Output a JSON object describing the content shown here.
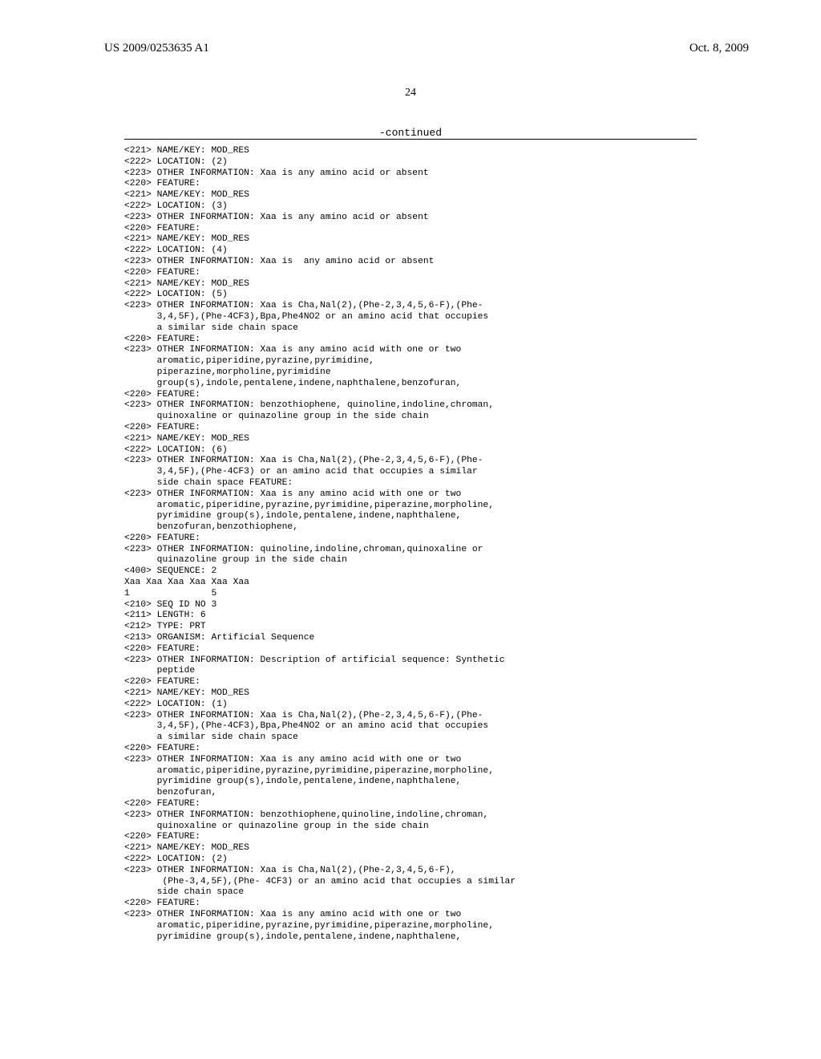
{
  "header": {
    "left": "US 2009/0253635 A1",
    "right": "Oct. 8, 2009",
    "page_number": "24",
    "continued": "-continued"
  },
  "lines": [
    "<221> NAME/KEY: MOD_RES",
    "<222> LOCATION: (2)",
    "<223> OTHER INFORMATION: Xaa is any amino acid or absent",
    "<220> FEATURE:",
    "<221> NAME/KEY: MOD_RES",
    "<222> LOCATION: (3)",
    "<223> OTHER INFORMATION: Xaa is any amino acid or absent",
    "<220> FEATURE:",
    "<221> NAME/KEY: MOD_RES",
    "<222> LOCATION: (4)",
    "<223> OTHER INFORMATION: Xaa is  any amino acid or absent",
    "<220> FEATURE:",
    "<221> NAME/KEY: MOD_RES",
    "<222> LOCATION: (5)",
    "<223> OTHER INFORMATION: Xaa is Cha,Nal(2),(Phe-2,3,4,5,6-F),(Phe-",
    "      3,4,5F),(Phe-4CF3),Bpa,Phe4NO2 or an amino acid that occupies",
    "      a similar side chain space",
    "<220> FEATURE:",
    "<223> OTHER INFORMATION: Xaa is any amino acid with one or two",
    "      aromatic,piperidine,pyrazine,pyrimidine,",
    "      piperazine,morpholine,pyrimidine",
    "      group(s),indole,pentalene,indene,naphthalene,benzofuran,",
    "<220> FEATURE:",
    "<223> OTHER INFORMATION: benzothiophene, quinoline,indoline,chroman,",
    "      quinoxaline or quinazoline group in the side chain",
    "<220> FEATURE:",
    "<221> NAME/KEY: MOD_RES",
    "<222> LOCATION: (6)",
    "<223> OTHER INFORMATION: Xaa is Cha,Nal(2),(Phe-2,3,4,5,6-F),(Phe-",
    "      3,4,5F),(Phe-4CF3) or an amino acid that occupies a similar",
    "      side chain space FEATURE:",
    "<223> OTHER INFORMATION: Xaa is any amino acid with one or two",
    "      aromatic,piperidine,pyrazine,pyrimidine,piperazine,morpholine,",
    "      pyrimidine group(s),indole,pentalene,indene,naphthalene,",
    "      benzofuran,benzothiophene,",
    "<220> FEATURE:",
    "<223> OTHER INFORMATION: quinoline,indoline,chroman,quinoxaline or",
    "      quinazoline group in the side chain",
    "",
    "<400> SEQUENCE: 2",
    "",
    "Xaa Xaa Xaa Xaa Xaa Xaa",
    "1               5",
    "",
    "",
    "<210> SEQ ID NO 3",
    "<211> LENGTH: 6",
    "<212> TYPE: PRT",
    "<213> ORGANISM: Artificial Sequence",
    "<220> FEATURE:",
    "<223> OTHER INFORMATION: Description of artificial sequence: Synthetic",
    "      peptide",
    "<220> FEATURE:",
    "<221> NAME/KEY: MOD_RES",
    "<222> LOCATION: (1)",
    "<223> OTHER INFORMATION: Xaa is Cha,Nal(2),(Phe-2,3,4,5,6-F),(Phe-",
    "      3,4,5F),(Phe-4CF3),Bpa,Phe4NO2 or an amino acid that occupies",
    "      a similar side chain space",
    "<220> FEATURE:",
    "<223> OTHER INFORMATION: Xaa is any amino acid with one or two",
    "      aromatic,piperidine,pyrazine,pyrimidine,piperazine,morpholine,",
    "      pyrimidine group(s),indole,pentalene,indene,naphthalene,",
    "      benzofuran,",
    "<220> FEATURE:",
    "<223> OTHER INFORMATION: benzothiophene,quinoline,indoline,chroman,",
    "      quinoxaline or quinazoline group in the side chain",
    "<220> FEATURE:",
    "<221> NAME/KEY: MOD_RES",
    "<222> LOCATION: (2)",
    "<223> OTHER INFORMATION: Xaa is Cha,Nal(2),(Phe-2,3,4,5,6-F),",
    "       (Phe-3,4,5F),(Phe- 4CF3) or an amino acid that occupies a similar",
    "      side chain space",
    "<220> FEATURE:",
    "<223> OTHER INFORMATION: Xaa is any amino acid with one or two",
    "      aromatic,piperidine,pyrazine,pyrimidine,piperazine,morpholine,",
    "      pyrimidine group(s),indole,pentalene,indene,naphthalene,"
  ]
}
